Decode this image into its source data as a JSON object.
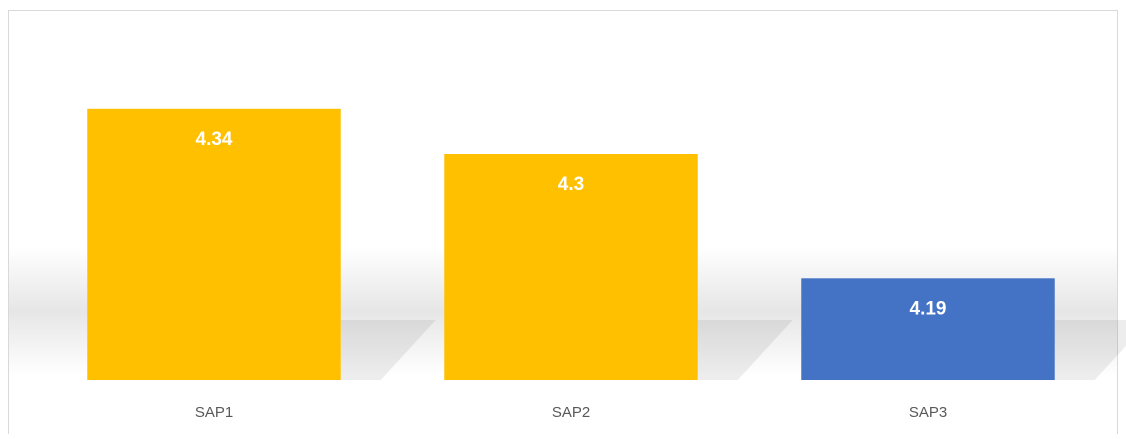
{
  "chart_data": {
    "type": "bar",
    "categories": [
      "SAP1",
      "SAP2",
      "SAP3"
    ],
    "values": [
      4.34,
      4.3,
      4.19
    ],
    "colors": [
      "#ffc000",
      "#ffc000",
      "#4472c4"
    ],
    "ylim": [
      4.1,
      4.4
    ]
  }
}
